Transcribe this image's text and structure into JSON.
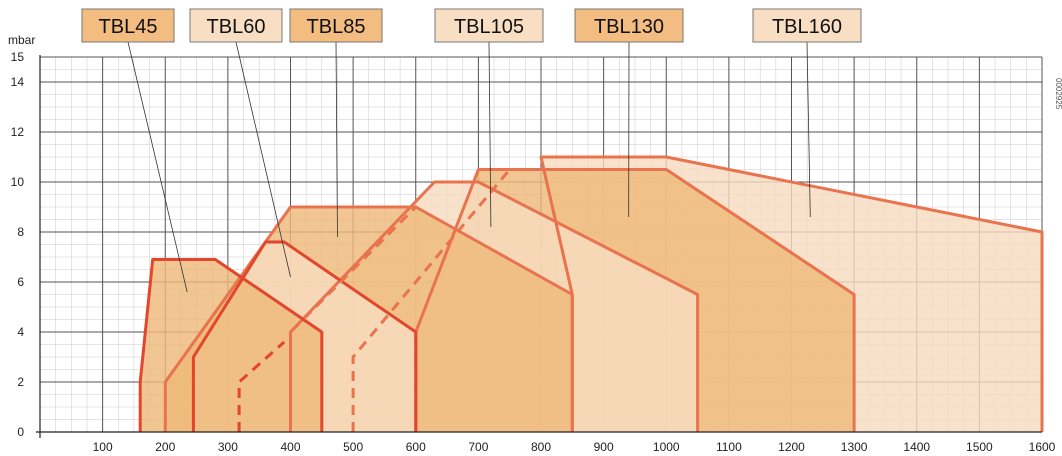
{
  "chart_data": {
    "type": "area",
    "title": "",
    "xlabel": "",
    "ylabel": "mbar",
    "xlim": [
      0,
      1600
    ],
    "ylim": [
      0,
      15
    ],
    "x_ticks": [
      100,
      200,
      300,
      400,
      500,
      600,
      700,
      800,
      900,
      1000,
      1100,
      1200,
      1300,
      1400,
      1500,
      1600
    ],
    "y_ticks": [
      0,
      2,
      4,
      6,
      8,
      10,
      12,
      14,
      15
    ],
    "grid": true,
    "document_code": "0002925",
    "series": [
      {
        "name": "TBL45",
        "fill": "#eeb97a",
        "stroke": "#e3462a",
        "label_box": "#f3bd82",
        "label_anchor": [
          235,
          5.6
        ],
        "points": [
          [
            160,
            0
          ],
          [
            160,
            2
          ],
          [
            180,
            6.9
          ],
          [
            280,
            6.9
          ],
          [
            450,
            4
          ],
          [
            450,
            0
          ]
        ],
        "dashed": null
      },
      {
        "name": "TBL60",
        "fill": "#f7dcc0",
        "stroke": "#e3462a",
        "label_box": "#f8dfc4",
        "label_anchor": [
          400,
          6.2
        ],
        "points": [
          [
            245,
            0
          ],
          [
            245,
            3
          ],
          [
            360,
            7.6
          ],
          [
            390,
            7.6
          ],
          [
            600,
            4
          ],
          [
            600,
            0
          ]
        ],
        "dashed": [
          [
            318,
            0
          ],
          [
            318,
            2
          ],
          [
            390,
            3.6
          ]
        ]
      },
      {
        "name": "TBL85",
        "fill": "#eeb97a",
        "stroke": "#e8734e",
        "label_box": "#f3bd82",
        "label_anchor": [
          475,
          7.8
        ],
        "points": [
          [
            200,
            0
          ],
          [
            200,
            2
          ],
          [
            400,
            9
          ],
          [
            600,
            9
          ],
          [
            850,
            5.5
          ],
          [
            850,
            0
          ]
        ],
        "dashed": [
          [
            400,
            0
          ],
          [
            400,
            4
          ],
          [
            600,
            9
          ]
        ]
      },
      {
        "name": "TBL105",
        "fill": "#f7dcc0",
        "stroke": "#e8734e",
        "label_box": "#f8dfc4",
        "label_anchor": [
          720,
          8.2
        ],
        "points": [
          [
            400,
            0
          ],
          [
            400,
            4
          ],
          [
            630,
            10
          ],
          [
            700,
            10
          ],
          [
            1050,
            5.5
          ],
          [
            1050,
            0
          ]
        ],
        "dashed": [
          [
            500,
            0
          ],
          [
            500,
            3
          ],
          [
            750,
            10.5
          ]
        ]
      },
      {
        "name": "TBL130",
        "fill": "#eeb97a",
        "stroke": "#e8734e",
        "label_box": "#f3bd82",
        "label_anchor": [
          940,
          8.6
        ],
        "points": [
          [
            600,
            0
          ],
          [
            600,
            4
          ],
          [
            700,
            10.5
          ],
          [
            1000,
            10.5
          ],
          [
            1300,
            5.5
          ],
          [
            1300,
            0
          ]
        ],
        "dashed": null
      },
      {
        "name": "TBL160",
        "fill": "#f7dcc0",
        "stroke": "#e8734e",
        "label_box": "#f8dfc4",
        "label_anchor": [
          1230,
          8.6
        ],
        "points": [
          [
            850,
            0
          ],
          [
            850,
            5.5
          ],
          [
            800,
            11
          ],
          [
            1000,
            11
          ],
          [
            1600,
            8
          ],
          [
            1600,
            0
          ]
        ],
        "dashed": null
      }
    ]
  }
}
